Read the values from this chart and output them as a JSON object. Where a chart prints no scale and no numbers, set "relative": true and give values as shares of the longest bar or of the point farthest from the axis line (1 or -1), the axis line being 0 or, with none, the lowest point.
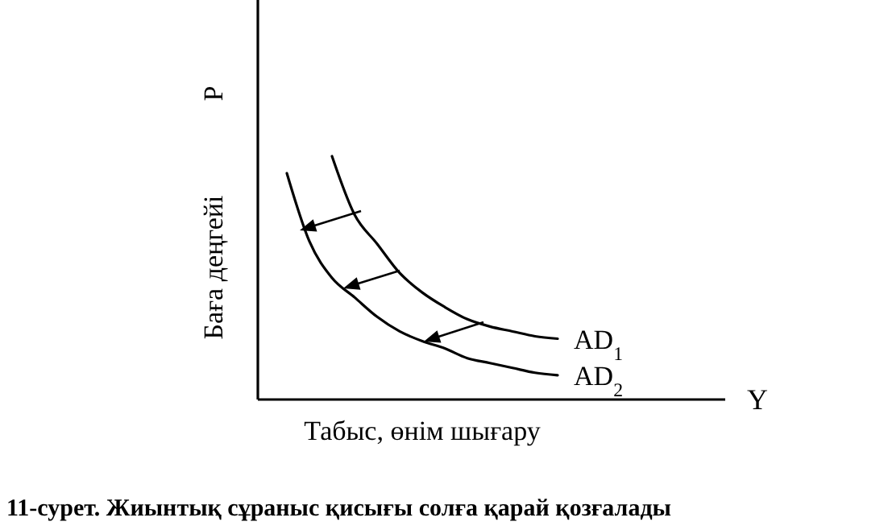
{
  "chart_data": {
    "type": "line",
    "relative": true,
    "title": "11-сурет. Жиынтық сұраныс қисығы солға қарай қозғалады",
    "xlabel": "Табыс, өнім шығару",
    "ylabel": "Баға деңгейі",
    "annotations": [
      "P",
      "Y"
    ],
    "categories": [
      null,
      null,
      null,
      null,
      null,
      null,
      null,
      null,
      null,
      null,
      null,
      null,
      null
    ],
    "series": [
      {
        "name": "AD$_{1}$",
        "color": "#000000",
        "values": [
          null,
          null,
          1,
          0.76,
          0.64,
          0.52,
          0.44,
          0.38,
          0.33,
          0.3,
          0.28,
          0.26,
          0.25
        ]
      },
      {
        "name": "AD$_{2}$",
        "color": "#000000",
        "values": [
          0.93,
          0.65,
          0.5,
          0.42,
          0.34,
          0.28,
          0.24,
          0.21,
          0.17,
          0.15,
          0.13,
          0.11,
          0.1
        ]
      }
    ]
  }
}
